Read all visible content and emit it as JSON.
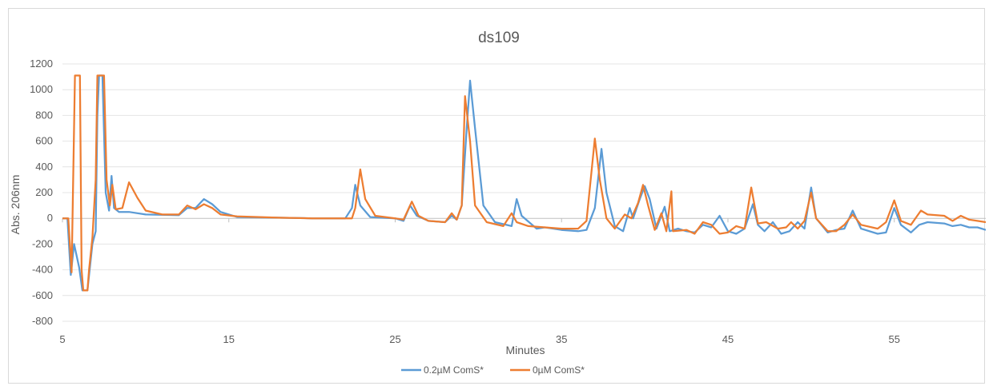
{
  "chart_data": {
    "type": "line",
    "title": "ds109",
    "xlabel": "Minutes",
    "ylabel": "Abs. 206nm",
    "xlim": [
      5,
      60.5
    ],
    "ylim": [
      -800,
      1200
    ],
    "x_ticks": [
      5,
      15,
      25,
      35,
      45,
      55
    ],
    "y_ticks": [
      -800,
      -600,
      -400,
      -200,
      0,
      200,
      400,
      600,
      800,
      1000,
      1200
    ],
    "x_tick_labels": [
      "5",
      "15",
      "25",
      "35",
      "45",
      "55"
    ],
    "y_tick_labels": [
      "-800",
      "-600",
      "-400",
      "-200",
      "0",
      "200",
      "400",
      "600",
      "800",
      "1000",
      "1200"
    ],
    "grid": "horizontal",
    "legend_position": "bottom",
    "series": [
      {
        "name": "0.2µM ComS*",
        "color": "#5b9bd5",
        "points": [
          [
            5.0,
            0
          ],
          [
            5.3,
            0
          ],
          [
            5.5,
            -440
          ],
          [
            5.7,
            -200
          ],
          [
            6.0,
            -380
          ],
          [
            6.2,
            -560
          ],
          [
            6.5,
            -560
          ],
          [
            6.8,
            -200
          ],
          [
            7.0,
            -100
          ],
          [
            7.1,
            800
          ],
          [
            7.2,
            1110
          ],
          [
            7.4,
            1110
          ],
          [
            7.6,
            200
          ],
          [
            7.8,
            60
          ],
          [
            7.95,
            330
          ],
          [
            8.1,
            80
          ],
          [
            8.4,
            50
          ],
          [
            9.0,
            50
          ],
          [
            10.0,
            30
          ],
          [
            12.0,
            25
          ],
          [
            12.5,
            80
          ],
          [
            13.0,
            80
          ],
          [
            13.5,
            150
          ],
          [
            14.0,
            110
          ],
          [
            14.5,
            50
          ],
          [
            15.5,
            10
          ],
          [
            18.0,
            5
          ],
          [
            20.0,
            0
          ],
          [
            22.0,
            0
          ],
          [
            22.4,
            80
          ],
          [
            22.6,
            260
          ],
          [
            22.9,
            100
          ],
          [
            23.5,
            10
          ],
          [
            25.0,
            0
          ],
          [
            25.5,
            -20
          ],
          [
            25.9,
            100
          ],
          [
            26.3,
            20
          ],
          [
            27.0,
            -20
          ],
          [
            28.0,
            -30
          ],
          [
            28.4,
            20
          ],
          [
            28.7,
            -10
          ],
          [
            29.0,
            100
          ],
          [
            29.3,
            700
          ],
          [
            29.5,
            1070
          ],
          [
            29.8,
            700
          ],
          [
            30.3,
            100
          ],
          [
            31.0,
            -30
          ],
          [
            32.0,
            -60
          ],
          [
            32.3,
            150
          ],
          [
            32.6,
            20
          ],
          [
            33.5,
            -80
          ],
          [
            34.0,
            -70
          ],
          [
            35.0,
            -90
          ],
          [
            36.0,
            -100
          ],
          [
            36.5,
            -90
          ],
          [
            37.0,
            80
          ],
          [
            37.4,
            540
          ],
          [
            37.7,
            200
          ],
          [
            38.2,
            -60
          ],
          [
            38.7,
            -100
          ],
          [
            39.1,
            80
          ],
          [
            39.3,
            0
          ],
          [
            39.7,
            150
          ],
          [
            40.0,
            250
          ],
          [
            40.3,
            150
          ],
          [
            40.7,
            -80
          ],
          [
            41.2,
            90
          ],
          [
            41.5,
            -100
          ],
          [
            42.0,
            -80
          ],
          [
            42.5,
            -100
          ],
          [
            43.0,
            -110
          ],
          [
            43.5,
            -50
          ],
          [
            44.0,
            -70
          ],
          [
            44.5,
            20
          ],
          [
            45.0,
            -100
          ],
          [
            45.5,
            -120
          ],
          [
            46.0,
            -80
          ],
          [
            46.5,
            110
          ],
          [
            46.8,
            -50
          ],
          [
            47.2,
            -100
          ],
          [
            47.7,
            -30
          ],
          [
            48.2,
            -120
          ],
          [
            48.7,
            -100
          ],
          [
            49.2,
            -30
          ],
          [
            49.6,
            -80
          ],
          [
            50.0,
            240
          ],
          [
            50.3,
            0
          ],
          [
            51.0,
            -110
          ],
          [
            51.5,
            -90
          ],
          [
            52.0,
            -80
          ],
          [
            52.5,
            60
          ],
          [
            53.0,
            -80
          ],
          [
            54.0,
            -120
          ],
          [
            54.5,
            -110
          ],
          [
            55.0,
            80
          ],
          [
            55.4,
            -50
          ],
          [
            56.0,
            -110
          ],
          [
            56.5,
            -50
          ],
          [
            57.0,
            -30
          ],
          [
            58.0,
            -40
          ],
          [
            58.5,
            -60
          ],
          [
            59.0,
            -50
          ],
          [
            59.5,
            -70
          ],
          [
            60.0,
            -70
          ],
          [
            60.5,
            -90
          ]
        ]
      },
      {
        "name": "0µM ComS*",
        "color": "#ed7d31",
        "points": [
          [
            5.0,
            0
          ],
          [
            5.35,
            0
          ],
          [
            5.55,
            -420
          ],
          [
            5.75,
            1110
          ],
          [
            6.05,
            1110
          ],
          [
            6.15,
            -400
          ],
          [
            6.25,
            -560
          ],
          [
            6.5,
            -560
          ],
          [
            6.6,
            -400
          ],
          [
            6.8,
            -150
          ],
          [
            7.0,
            300
          ],
          [
            7.1,
            1110
          ],
          [
            7.5,
            1110
          ],
          [
            7.65,
            300
          ],
          [
            7.85,
            100
          ],
          [
            8.0,
            260
          ],
          [
            8.2,
            70
          ],
          [
            8.6,
            80
          ],
          [
            9.0,
            280
          ],
          [
            9.5,
            160
          ],
          [
            10.0,
            60
          ],
          [
            11.0,
            30
          ],
          [
            12.0,
            30
          ],
          [
            12.5,
            100
          ],
          [
            13.0,
            70
          ],
          [
            13.5,
            110
          ],
          [
            14.0,
            80
          ],
          [
            14.5,
            30
          ],
          [
            15.5,
            15
          ],
          [
            18.0,
            5
          ],
          [
            20.0,
            0
          ],
          [
            22.4,
            0
          ],
          [
            22.6,
            80
          ],
          [
            22.9,
            380
          ],
          [
            23.2,
            150
          ],
          [
            23.8,
            20
          ],
          [
            25.0,
            0
          ],
          [
            25.5,
            -10
          ],
          [
            26.0,
            130
          ],
          [
            26.4,
            20
          ],
          [
            27.0,
            -20
          ],
          [
            28.0,
            -30
          ],
          [
            28.4,
            40
          ],
          [
            28.7,
            -10
          ],
          [
            29.0,
            100
          ],
          [
            29.2,
            950
          ],
          [
            29.5,
            600
          ],
          [
            29.8,
            100
          ],
          [
            30.5,
            -30
          ],
          [
            31.5,
            -60
          ],
          [
            32.0,
            40
          ],
          [
            32.3,
            -30
          ],
          [
            33.0,
            -60
          ],
          [
            34.0,
            -70
          ],
          [
            35.0,
            -80
          ],
          [
            36.0,
            -80
          ],
          [
            36.5,
            -20
          ],
          [
            37.0,
            620
          ],
          [
            37.3,
            300
          ],
          [
            37.7,
            0
          ],
          [
            38.2,
            -80
          ],
          [
            38.8,
            30
          ],
          [
            39.2,
            0
          ],
          [
            39.6,
            120
          ],
          [
            39.9,
            260
          ],
          [
            40.2,
            100
          ],
          [
            40.6,
            -90
          ],
          [
            41.0,
            40
          ],
          [
            41.3,
            -100
          ],
          [
            41.6,
            210
          ],
          [
            41.7,
            -100
          ],
          [
            42.5,
            -90
          ],
          [
            43.0,
            -120
          ],
          [
            43.5,
            -30
          ],
          [
            44.0,
            -50
          ],
          [
            44.5,
            -120
          ],
          [
            45.0,
            -110
          ],
          [
            45.5,
            -60
          ],
          [
            46.0,
            -80
          ],
          [
            46.4,
            240
          ],
          [
            46.8,
            -40
          ],
          [
            47.3,
            -30
          ],
          [
            48.0,
            -80
          ],
          [
            48.5,
            -70
          ],
          [
            48.8,
            -30
          ],
          [
            49.2,
            -80
          ],
          [
            49.6,
            -20
          ],
          [
            50.0,
            200
          ],
          [
            50.3,
            0
          ],
          [
            51.0,
            -100
          ],
          [
            51.5,
            -100
          ],
          [
            52.0,
            -50
          ],
          [
            52.5,
            30
          ],
          [
            53.0,
            -50
          ],
          [
            54.0,
            -80
          ],
          [
            54.5,
            -30
          ],
          [
            55.0,
            140
          ],
          [
            55.4,
            -20
          ],
          [
            56.0,
            -50
          ],
          [
            56.6,
            60
          ],
          [
            57.0,
            30
          ],
          [
            58.0,
            20
          ],
          [
            58.5,
            -20
          ],
          [
            59.0,
            20
          ],
          [
            59.5,
            -10
          ],
          [
            60.0,
            -20
          ],
          [
            60.5,
            -30
          ]
        ]
      }
    ]
  }
}
